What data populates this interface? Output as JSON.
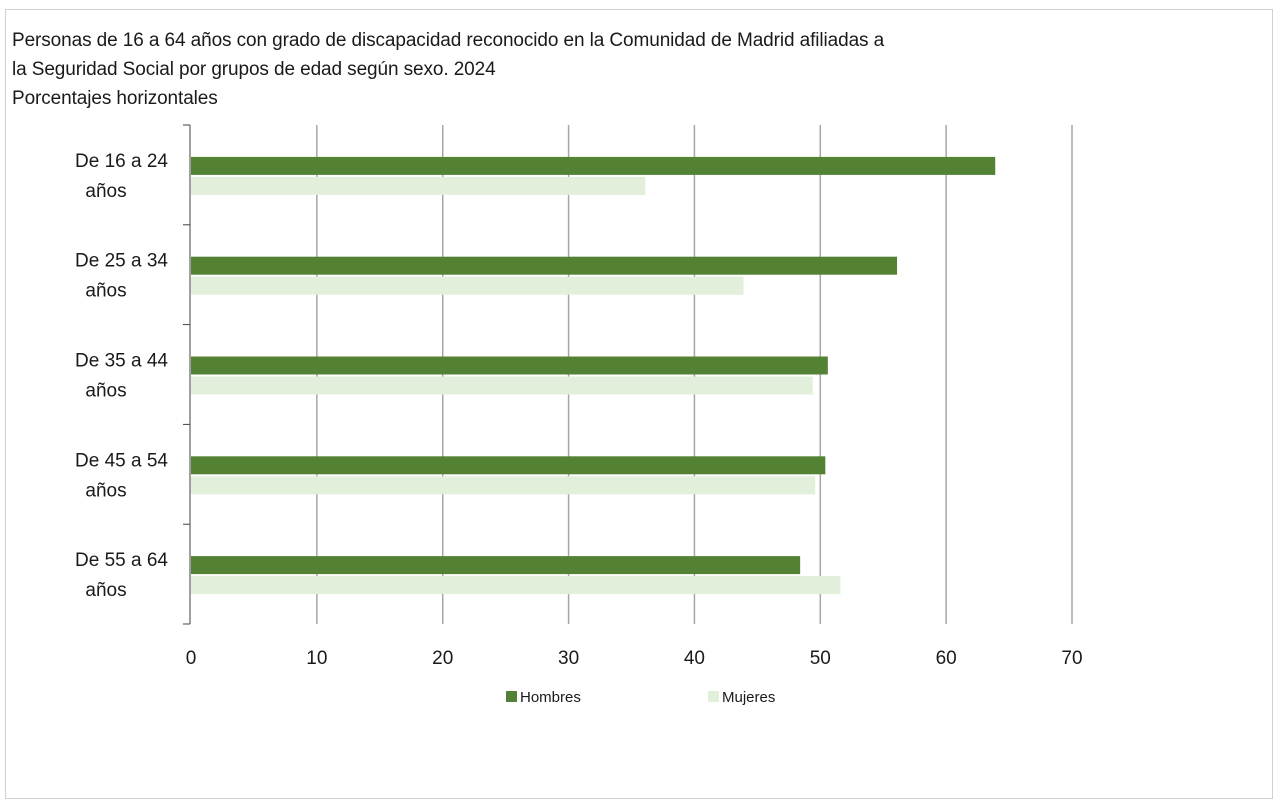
{
  "title": {
    "line1": "Personas de 16 a 64 años con grado de discapacidad reconocido en la Comunidad de Madrid afiliadas a",
    "line2": "la Seguridad Social por grupos de edad según sexo. 2024",
    "line3": "Porcentajes horizontales"
  },
  "chart_data": {
    "type": "bar",
    "orientation": "horizontal",
    "title": "Personas de 16 a 64 años con grado de discapacidad reconocido en la Comunidad de Madrid afiliadas a la Seguridad Social por grupos de edad según sexo. 2024",
    "subtitle": "Porcentajes horizontales",
    "categories": [
      [
        "De 16 a 24",
        "años"
      ],
      [
        "De 25 a 34",
        "años"
      ],
      [
        "De 35 a 44",
        "años"
      ],
      [
        "De 45 a 54",
        "años"
      ],
      [
        "De 55 a 64",
        "años"
      ]
    ],
    "series": [
      {
        "name": "Hombres",
        "color": "#548235",
        "values": [
          63.9,
          56.1,
          50.6,
          50.4,
          48.4
        ]
      },
      {
        "name": "Mujeres",
        "color": "#e2efda",
        "values": [
          36.1,
          43.9,
          49.4,
          49.6,
          51.6
        ]
      }
    ],
    "xlim": [
      0,
      70
    ],
    "xticks": [
      0,
      10,
      20,
      30,
      40,
      50,
      60,
      70
    ],
    "grid": true,
    "legend_position": "bottom"
  }
}
